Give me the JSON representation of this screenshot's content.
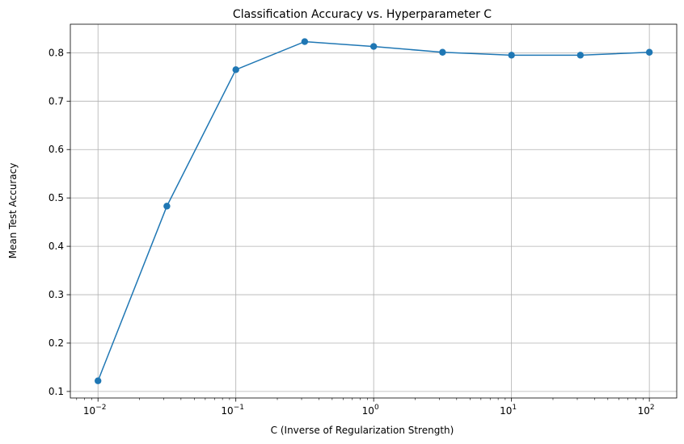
{
  "chart_data": {
    "type": "line",
    "title": "Classification Accuracy vs. Hyperparameter C",
    "xlabel": "C (Inverse of Regularization Strength)",
    "ylabel": "Mean Test Accuracy",
    "x_scale": "log",
    "grid": true,
    "xlim": [
      0.0063,
      158
    ],
    "ylim": [
      0.0865,
      0.859
    ],
    "x_ticks": [
      {
        "value": 0.01,
        "base": "10",
        "exp": "−2"
      },
      {
        "value": 0.1,
        "base": "10",
        "exp": "−1"
      },
      {
        "value": 1,
        "base": "10",
        "exp": "0"
      },
      {
        "value": 10,
        "base": "10",
        "exp": "1"
      },
      {
        "value": 100,
        "base": "10",
        "exp": "2"
      }
    ],
    "y_ticks": [
      {
        "value": 0.1,
        "label": "0.1"
      },
      {
        "value": 0.2,
        "label": "0.2"
      },
      {
        "value": 0.3,
        "label": "0.3"
      },
      {
        "value": 0.4,
        "label": "0.4"
      },
      {
        "value": 0.5,
        "label": "0.5"
      },
      {
        "value": 0.6,
        "label": "0.6"
      },
      {
        "value": 0.7,
        "label": "0.7"
      },
      {
        "value": 0.8,
        "label": "0.8"
      }
    ],
    "series": [
      {
        "color": "#1f77b4",
        "marker": "circle",
        "x": [
          0.01,
          0.0316,
          0.1,
          0.316,
          1,
          3.16,
          10,
          31.6,
          100
        ],
        "y": [
          0.122,
          0.483,
          0.765,
          0.823,
          0.813,
          0.801,
          0.795,
          0.795,
          0.801
        ]
      }
    ]
  }
}
